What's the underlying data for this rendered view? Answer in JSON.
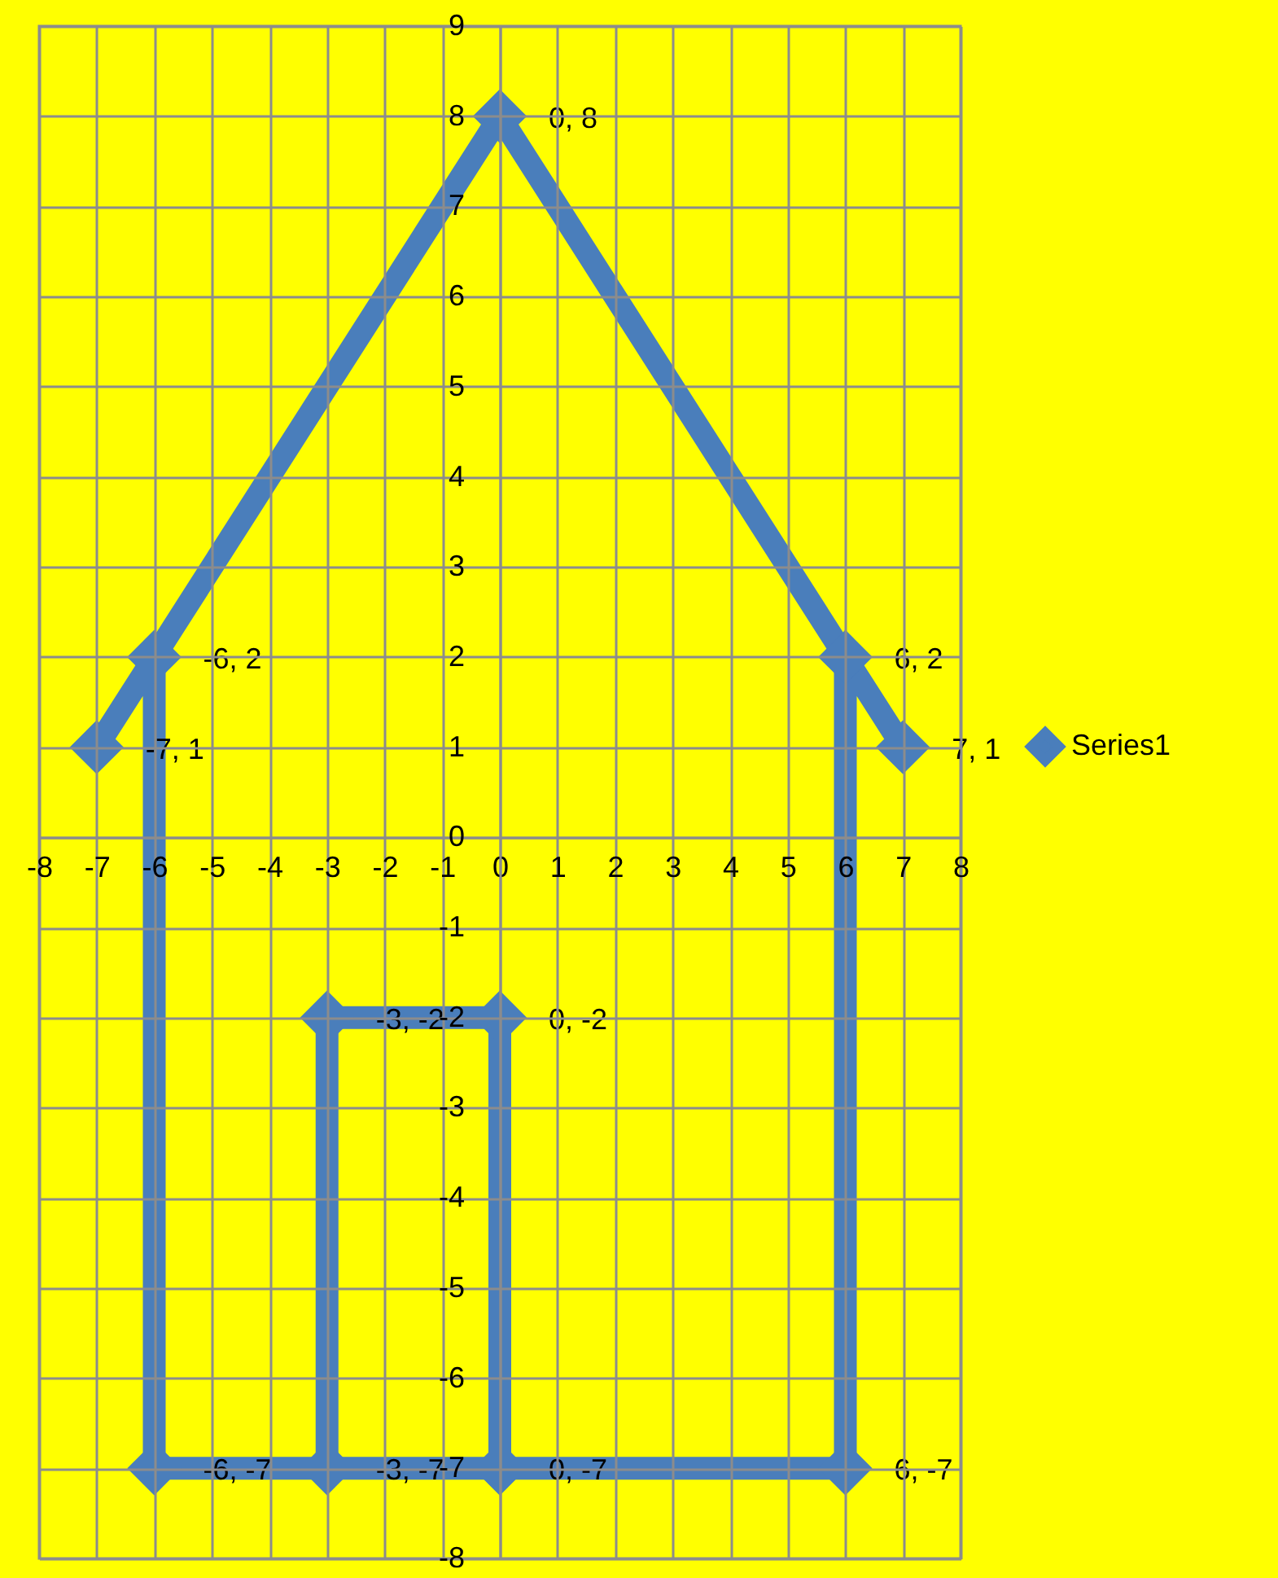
{
  "chart_data": {
    "type": "line",
    "x": [
      -7,
      -6,
      0,
      6,
      7,
      6,
      6,
      0,
      0,
      -3,
      -3,
      0,
      -6,
      -6
    ],
    "series": [
      {
        "name": "Series1",
        "color": "#4a7ebb",
        "values": [
          1,
          2,
          8,
          2,
          1,
          2,
          -7,
          -7,
          -2,
          -2,
          -7,
          -7,
          -7,
          2
        ],
        "value_labels": [
          "-7, 1",
          "-6, 2",
          "0, 8",
          "6, 2",
          "7, 1",
          null,
          "6, -7",
          "0, -7",
          "0, -2",
          "-3, -2",
          "-3, -7",
          null,
          "-6, -7",
          null
        ]
      }
    ],
    "xlim": [
      -8,
      8
    ],
    "xticks": [
      -8,
      -7,
      -6,
      -5,
      -4,
      -3,
      -2,
      -1,
      0,
      1,
      2,
      3,
      4,
      5,
      6,
      7,
      8
    ],
    "ylim": [
      -8,
      9
    ],
    "yticks": [
      -8,
      -7,
      -6,
      -5,
      -4,
      -3,
      -2,
      -1,
      0,
      1,
      2,
      3,
      4,
      5,
      6,
      7,
      8,
      9
    ],
    "grid": true,
    "legend": "right",
    "marker": "diamond",
    "line_style": "solid"
  }
}
